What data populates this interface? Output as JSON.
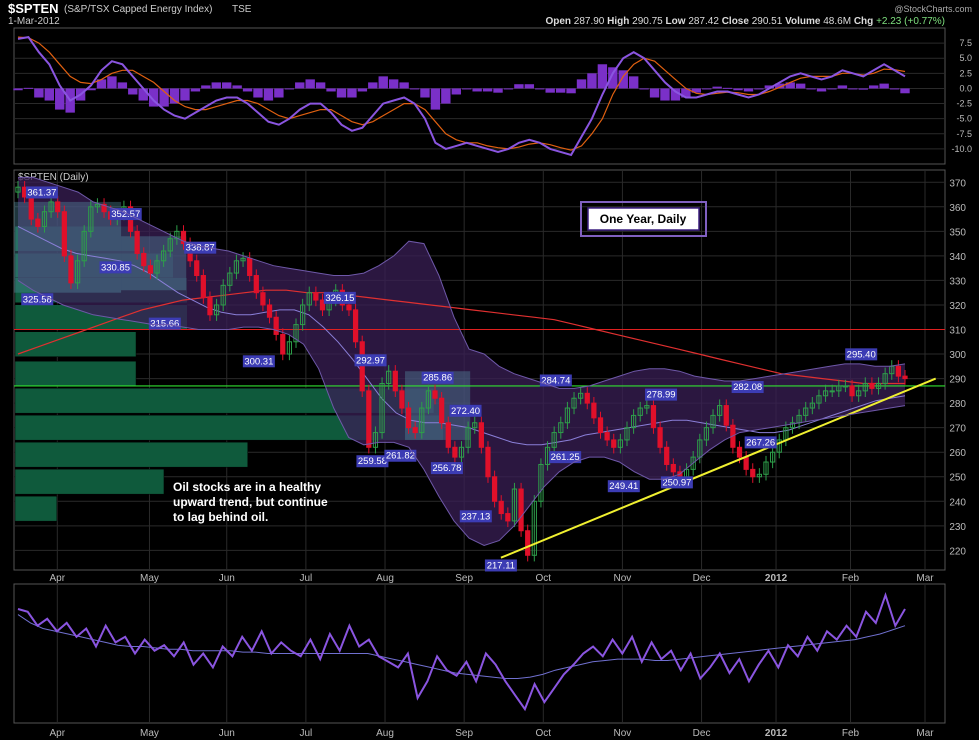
{
  "header": {
    "symbol": "$SPTEN",
    "name": "(S&P/TSX Capped Energy Index)",
    "exchange": "TSE",
    "date": "1-Mar-2012",
    "watermark": "@StockCharts.com",
    "stats": [
      {
        "label": "Open",
        "value": "287.90"
      },
      {
        "label": "High",
        "value": "290.75"
      },
      {
        "label": "Low",
        "value": "287.42"
      },
      {
        "label": "Close",
        "value": "290.51"
      },
      {
        "label": "Volume",
        "value": "48.6M"
      },
      {
        "label": "Chg",
        "value": "+2.23 (+0.77%)"
      }
    ]
  },
  "main_panel": {
    "label": "$SPTEN (Daily)",
    "box_label": "One Year, Daily",
    "annotation": [
      "Oil stocks are in a healthy",
      "upward trend, but continue",
      "to lag behind oil."
    ]
  },
  "colors": {
    "background": "#000000",
    "panel_border": "#555555",
    "grid": "#2a2a2a",
    "up_candle": "#2e9e4a",
    "down_candle": "#e0102a",
    "bollinger_fill": "#3a1f55",
    "ma200": "#e03030",
    "ma50": "#8a7fd8",
    "support_line": "#f0f030",
    "resistance_line": "#e02020",
    "green_line": "#30e030",
    "volume_by_price": "#0f5a3c",
    "macd": "#8a55e0",
    "signal": "#e06010",
    "histogram": "#7a30c8",
    "rsi": "#8a55e0",
    "label_box": "#3c3cb4"
  },
  "chart_data": [
    {
      "type": "line",
      "panel": "MACD",
      "ylim": [
        -12.5,
        10
      ],
      "yticks": [
        "7.5",
        "5.0",
        "2.5",
        "0.0",
        "-2.5",
        "-5.0",
        "-7.5",
        "-10.0"
      ],
      "ytick_values": [
        7.5,
        5,
        2.5,
        0,
        -2.5,
        -5,
        -7.5,
        -10
      ],
      "series": [
        {
          "role": "macd",
          "values": [
            8.2,
            8.5,
            6,
            4,
            0.5,
            -2,
            -1,
            0.5,
            3,
            4.5,
            4,
            2,
            0,
            -2,
            -3.5,
            -4.5,
            -5,
            -4,
            -3,
            -2,
            -1.5,
            -1.5,
            -2.5,
            -4,
            -5.5,
            -6,
            -5,
            -3.5,
            -2.5,
            -2.5,
            -4,
            -6,
            -7,
            -6.5,
            -4.5,
            -2.5,
            -2,
            -1.5,
            -2.5,
            -5,
            -9,
            -10,
            -9.5,
            -9,
            -9.5,
            -10,
            -10.5,
            -10,
            -9,
            -8.5,
            -9,
            -10,
            -10.5,
            -11,
            -8,
            -5,
            -1,
            2.5,
            5,
            6,
            5,
            3,
            1,
            -0.5,
            -1.5,
            -1.5,
            -1,
            -0.5,
            -0.5,
            -1,
            -1.5,
            -1,
            0,
            1,
            2,
            2.5,
            2,
            1.5,
            2,
            3,
            2.5,
            2,
            3,
            4,
            3,
            2
          ]
        },
        {
          "role": "signal",
          "values": [
            8.5,
            8.4,
            7.5,
            6,
            4,
            2,
            1,
            0.8,
            1.5,
            2.5,
            3,
            3,
            2,
            1,
            -0.5,
            -2,
            -3,
            -3.5,
            -3.5,
            -3,
            -2.5,
            -2,
            -2,
            -2.5,
            -3.5,
            -4.5,
            -5,
            -4.5,
            -4,
            -3.5,
            -3.5,
            -4.5,
            -5.5,
            -6,
            -5.5,
            -4.5,
            -3.5,
            -2.5,
            -2.5,
            -3.5,
            -5.5,
            -7.5,
            -8.5,
            -9,
            -9,
            -9.5,
            -9.8,
            -10,
            -9.7,
            -9.2,
            -9,
            -9.3,
            -9.8,
            -10.2,
            -9.5,
            -7.5,
            -5,
            -1,
            2,
            4,
            5,
            4.5,
            3,
            1.5,
            0,
            -0.8,
            -1,
            -0.8,
            -0.6,
            -0.7,
            -1,
            -1,
            -0.5,
            0.2,
            1,
            1.7,
            2,
            2,
            2,
            2.5,
            2.5,
            2.2,
            2.5,
            3.2,
            3.1,
            2.8
          ]
        }
      ]
    },
    {
      "type": "candlestick",
      "panel": "Price",
      "ylim": [
        212,
        375
      ],
      "yticks": [
        "220",
        "230",
        "240",
        "250",
        "260",
        "270",
        "280",
        "290",
        "300",
        "310",
        "320",
        "330",
        "340",
        "350",
        "360",
        "370"
      ],
      "ytick_values": [
        220,
        230,
        240,
        250,
        260,
        270,
        280,
        290,
        300,
        310,
        320,
        330,
        340,
        350,
        360,
        370
      ],
      "xticks": [
        "Apr",
        "May",
        "Jun",
        "Jul",
        "Aug",
        "Sep",
        "Oct",
        "Nov",
        "Dec",
        "2012",
        "Feb",
        "Mar"
      ],
      "xtick_positions": [
        0.068,
        0.167,
        0.25,
        0.335,
        0.42,
        0.505,
        0.59,
        0.675,
        0.76,
        0.84,
        0.92,
        1.0
      ],
      "closes": [
        368,
        364,
        355,
        352,
        358,
        362,
        358,
        340,
        329,
        338,
        350,
        360,
        361,
        358,
        355,
        357,
        360,
        350,
        341,
        336,
        333,
        338,
        342,
        347,
        350,
        345,
        338,
        332,
        323,
        316,
        320,
        328,
        333,
        338,
        339,
        332,
        325,
        320,
        315,
        308,
        300,
        305,
        312,
        320,
        325,
        322,
        318,
        322,
        326,
        320,
        318,
        305,
        285,
        262,
        268,
        288,
        293,
        285,
        278,
        270,
        268,
        278,
        285,
        282,
        272,
        262,
        258,
        262,
        270,
        272,
        262,
        250,
        240,
        235,
        232,
        245,
        228,
        218,
        240,
        255,
        262,
        268,
        272,
        278,
        282,
        284,
        280,
        274,
        268,
        265,
        262,
        265,
        270,
        275,
        278,
        279,
        270,
        262,
        255,
        252,
        249,
        253,
        258,
        265,
        270,
        275,
        279,
        271,
        262,
        258,
        253,
        250,
        251,
        256,
        260,
        265,
        270,
        272,
        275,
        278,
        280,
        283,
        285,
        285,
        287,
        287,
        283,
        285,
        288,
        286,
        288,
        292,
        295,
        291,
        290
      ],
      "ma50_values": [
        352,
        349,
        346,
        343,
        341,
        340,
        339,
        338,
        336,
        333,
        329,
        325,
        322,
        319,
        317,
        316,
        316,
        317,
        318,
        318,
        316,
        311,
        305,
        298,
        290,
        282,
        276,
        273,
        272,
        272,
        271,
        270,
        268,
        266,
        264,
        263,
        263,
        264,
        265,
        267,
        268,
        269,
        270,
        271,
        272,
        273,
        273,
        272,
        271,
        270,
        269,
        268,
        268,
        269,
        271,
        273,
        275,
        277,
        279,
        281,
        282,
        283
      ],
      "ma200_values": [
        300,
        303,
        306,
        309,
        312,
        315,
        318,
        320,
        322,
        323,
        324,
        325,
        326,
        326,
        325,
        325,
        324,
        323,
        322,
        321,
        320,
        319,
        318,
        317,
        316,
        315,
        314,
        312,
        310,
        308,
        306,
        304,
        302,
        300,
        298,
        296,
        294,
        292,
        291,
        290,
        289,
        288,
        288,
        288
      ],
      "bollinger_upper": [
        372,
        372,
        370,
        368,
        366,
        362,
        360,
        358,
        355,
        352,
        349,
        346,
        344,
        343,
        342,
        340,
        338,
        336,
        335,
        334,
        333,
        332,
        332,
        333,
        336,
        340,
        346,
        345,
        332,
        315,
        302,
        300,
        295,
        292,
        290,
        288,
        286,
        286,
        287,
        289,
        291,
        293,
        294,
        294,
        293,
        291,
        290,
        289,
        289,
        290,
        291,
        292,
        293,
        294,
        295,
        296,
        296,
        295,
        295,
        296
      ],
      "bollinger_lower": [
        330,
        326,
        323,
        320,
        318,
        316,
        315,
        314,
        313,
        312,
        312,
        311,
        310,
        310,
        310,
        311,
        311,
        310,
        308,
        304,
        294,
        278,
        266,
        263,
        264,
        264,
        262,
        253,
        242,
        232,
        225,
        222,
        224,
        230,
        238,
        246,
        252,
        256,
        258,
        258,
        256,
        252,
        249,
        249,
        251,
        256,
        261,
        265,
        268,
        269,
        270,
        271,
        272,
        273,
        274,
        275,
        276,
        277,
        278,
        279
      ],
      "price_labels": [
        {
          "text": "361.37",
          "value": 361.37,
          "x": 0.03
        },
        {
          "text": "352.57",
          "value": 352.57,
          "x": 0.12
        },
        {
          "text": "338.87",
          "value": 338.87,
          "x": 0.2
        },
        {
          "text": "325.58",
          "value": 325.58,
          "x": 0.025
        },
        {
          "text": "330.85",
          "value": 330.85,
          "x": 0.109
        },
        {
          "text": "315.66",
          "value": 315.66,
          "x": 0.162
        },
        {
          "text": "300.31",
          "value": 300.31,
          "x": 0.263
        },
        {
          "text": "326.15",
          "value": 326.15,
          "x": 0.35
        },
        {
          "text": "292.97",
          "value": 292.97,
          "x": 0.383
        },
        {
          "text": "285.86",
          "value": 285.86,
          "x": 0.455
        },
        {
          "text": "272.40",
          "value": 272.4,
          "x": 0.485
        },
        {
          "text": "259.58",
          "value": 259.58,
          "x": 0.385
        },
        {
          "text": "261.82",
          "value": 261.82,
          "x": 0.415
        },
        {
          "text": "256.78",
          "value": 256.78,
          "x": 0.465
        },
        {
          "text": "237.13",
          "value": 237.13,
          "x": 0.496
        },
        {
          "text": "217.11",
          "value": 217.11,
          "x": 0.523
        },
        {
          "text": "284.74",
          "value": 284.74,
          "x": 0.582
        },
        {
          "text": "261.25",
          "value": 261.25,
          "x": 0.592
        },
        {
          "text": "278.99",
          "value": 278.99,
          "x": 0.695
        },
        {
          "text": "249.41",
          "value": 249.41,
          "x": 0.655
        },
        {
          "text": "250.97",
          "value": 250.97,
          "x": 0.712
        },
        {
          "text": "282.08",
          "value": 282.08,
          "x": 0.788
        },
        {
          "text": "267.26",
          "value": 267.26,
          "x": 0.802
        },
        {
          "text": "295.40",
          "value": 295.4,
          "x": 0.91
        }
      ],
      "horizontal_lines": [
        {
          "role": "resistance",
          "value": 310
        },
        {
          "role": "support",
          "value": 287
        }
      ],
      "trendline": {
        "start": {
          "x": 0.523,
          "value": 217
        },
        "end": {
          "x": 0.99,
          "value": 290
        }
      },
      "volume_by_price": [
        {
          "value": 347,
          "length": 0.13
        },
        {
          "value": 336,
          "length": 0.17
        },
        {
          "value": 326,
          "length": 0.185
        },
        {
          "value": 315,
          "length": 0.185
        },
        {
          "value": 304,
          "length": 0.13
        },
        {
          "value": 292,
          "length": 0.13
        },
        {
          "value": 281,
          "length": 0.45
        },
        {
          "value": 270,
          "length": 0.46
        },
        {
          "value": 259,
          "length": 0.25
        },
        {
          "value": 248,
          "length": 0.16
        },
        {
          "value": 237,
          "length": 0.045
        }
      ]
    },
    {
      "type": "line",
      "panel": "RSI-like",
      "ylim": [
        0,
        100
      ],
      "xticks": [
        "Apr",
        "May",
        "Jun",
        "Jul",
        "Aug",
        "Sep",
        "Oct",
        "Nov",
        "Dec",
        "2012",
        "Feb",
        "Mar"
      ],
      "xtick_positions": [
        0.068,
        0.167,
        0.25,
        0.335,
        0.42,
        0.505,
        0.59,
        0.675,
        0.76,
        0.84,
        0.92,
        1.0
      ],
      "series": [
        {
          "role": "oscillator",
          "values": [
            82,
            80,
            70,
            75,
            66,
            72,
            62,
            68,
            55,
            70,
            58,
            62,
            50,
            60,
            52,
            56,
            48,
            58,
            42,
            50,
            40,
            55,
            48,
            62,
            52,
            66,
            50,
            58,
            52,
            48,
            60,
            46,
            64,
            52,
            70,
            55,
            60,
            48,
            44,
            40,
            50,
            18,
            30,
            48,
            38,
            34,
            44,
            30,
            50,
            42,
            30,
            20,
            10,
            28,
            15,
            25,
            35,
            42,
            50,
            55,
            48,
            60,
            50,
            62,
            44,
            58,
            46,
            52,
            38,
            50,
            32,
            40,
            50,
            36,
            46,
            30,
            42,
            52,
            40,
            56,
            48,
            62,
            52,
            66,
            60,
            70,
            62,
            80,
            72,
            92,
            70,
            82
          ]
        },
        {
          "role": "smoothed",
          "values": [
            78,
            72,
            68,
            66,
            64,
            62,
            60,
            58,
            56,
            55,
            55,
            54,
            53,
            53,
            52,
            52,
            52,
            52,
            51,
            51,
            50,
            50,
            50,
            50,
            50,
            50,
            50,
            50,
            50,
            48,
            46,
            44,
            42,
            40,
            38,
            36,
            35,
            34,
            33,
            32,
            32,
            33,
            35,
            38,
            40,
            42,
            44,
            45,
            46,
            46,
            46,
            45,
            45,
            46,
            47,
            48,
            49,
            50,
            51,
            52,
            53,
            54,
            55,
            56,
            57,
            58,
            59,
            60,
            62,
            64,
            67,
            70
          ]
        }
      ]
    }
  ]
}
